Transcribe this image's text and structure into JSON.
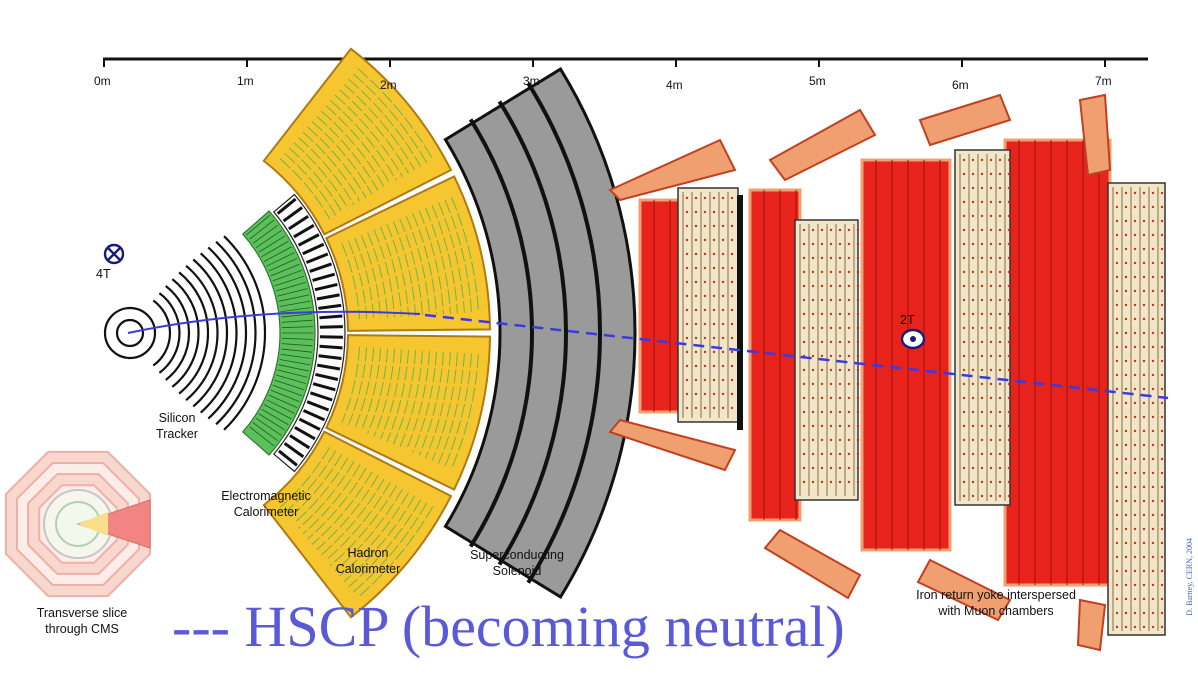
{
  "scale": {
    "ticks": [
      "0m",
      "1m",
      "2m",
      "3m",
      "4m",
      "5m",
      "6m",
      "7m"
    ]
  },
  "fields": {
    "inner": "4T",
    "outer": "2T"
  },
  "labels": {
    "tracker": [
      "Silicon",
      "Tracker"
    ],
    "ecal": [
      "Electromagnetic",
      "Calorimeter"
    ],
    "hcal": [
      "Hadron",
      "Calorimeter"
    ],
    "solenoid": [
      "Superconducting",
      "Solenoid"
    ],
    "yoke": [
      "Iron return yoke interspersed",
      "with Muon chambers"
    ],
    "slice": [
      "Transverse slice",
      "through CMS"
    ]
  },
  "footer": "--- HSCP (becoming neutral)",
  "credit": "D. Barney, CERN, 2004",
  "colors": {
    "hcal": "#f5c630",
    "ecal": "#5bbf5b",
    "iron": "#e8231b",
    "iron_edge": "#f0a070",
    "solenoid": "#9a9a9a",
    "track": "#3a3adf",
    "footer": "#5a5ad8"
  }
}
